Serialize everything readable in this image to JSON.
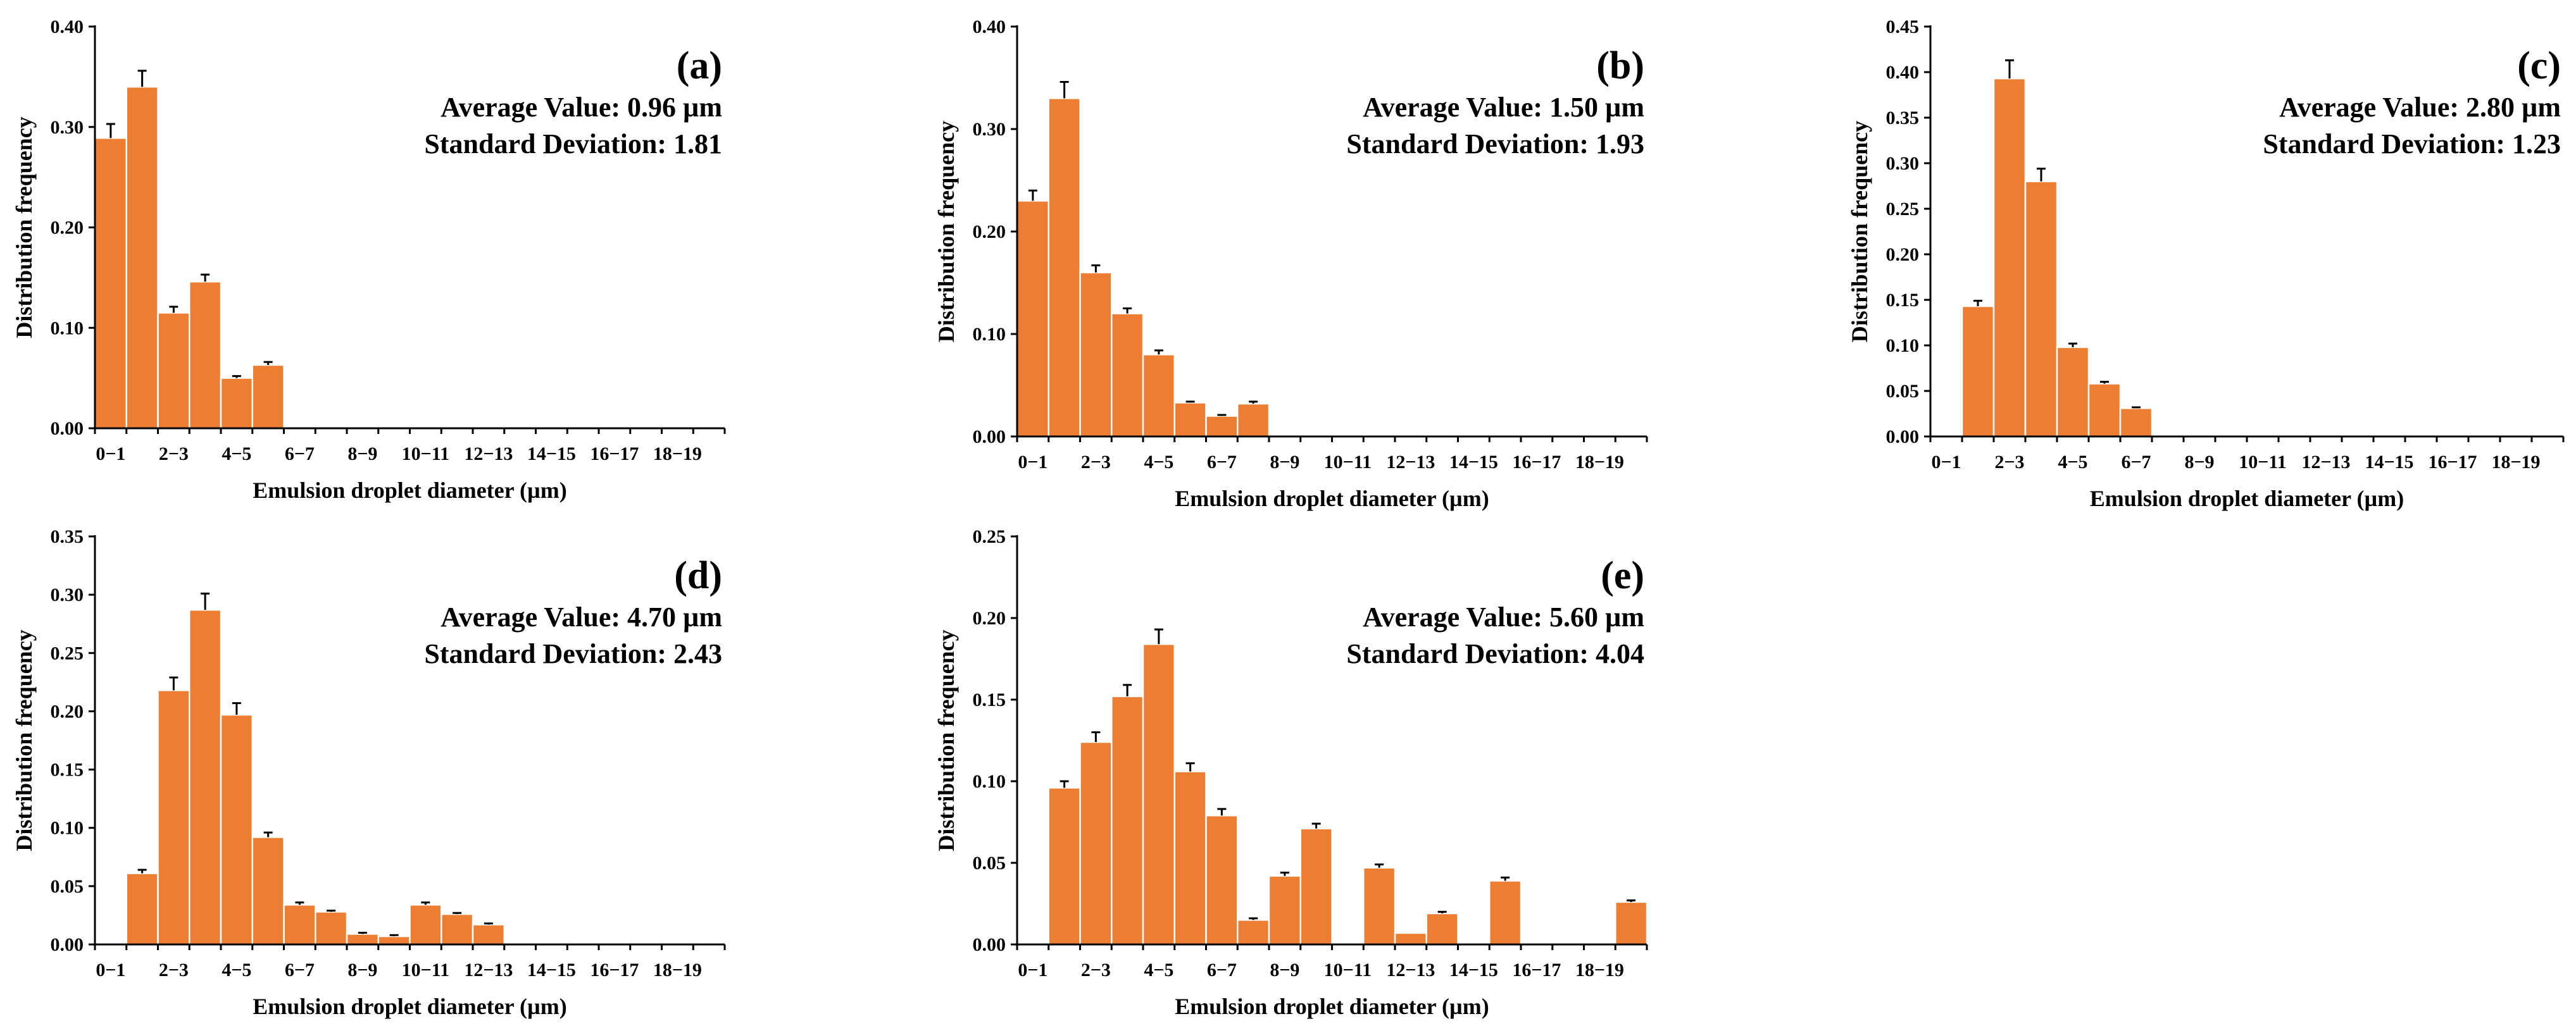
{
  "colors": {
    "bar": "#ED7D31",
    "axis": "#000000",
    "background": "#FFFFFF"
  },
  "chart_data": [
    {
      "type": "bar",
      "panel": "(a)",
      "stats": [
        "Average Value: 0.96 µm",
        "Standard Deviation: 1.81"
      ],
      "xlabel": "Emulsion droplet diameter (µm)",
      "ylabel": "Distribution frequency",
      "ylim": [
        0,
        0.4
      ],
      "yticks": [
        "0.00",
        "0.10",
        "0.20",
        "0.30",
        "0.40"
      ],
      "bins": 20,
      "xtick_labels": [
        "0−1",
        "2−3",
        "4−5",
        "6−7",
        "8−9",
        "10−11",
        "12−13",
        "14−15",
        "16−17",
        "18−19"
      ],
      "values": [
        0.289,
        0.34,
        0.115,
        0.146,
        0.05,
        0.063,
        0,
        0,
        0,
        0,
        0,
        0,
        0,
        0,
        0,
        0,
        0,
        0,
        0,
        0
      ],
      "errors": [
        0.014,
        0.016,
        0.006,
        0.007,
        0.002,
        0.003,
        0,
        0,
        0,
        0,
        0,
        0,
        0,
        0,
        0,
        0,
        0,
        0,
        0,
        0
      ]
    },
    {
      "type": "bar",
      "panel": "(b)",
      "stats": [
        "Average Value: 1.50 µm",
        "Standard Deviation: 1.93"
      ],
      "xlabel": "Emulsion droplet diameter (µm)",
      "ylabel": "Distribution frequency",
      "ylim": [
        0,
        0.4
      ],
      "yticks": [
        "0.00",
        "0.10",
        "0.20",
        "0.30",
        "0.40"
      ],
      "bins": 20,
      "xtick_labels": [
        "0−1",
        "2−3",
        "4−5",
        "6−7",
        "8−9",
        "10−11",
        "12−13",
        "14−15",
        "16−17",
        "18−19"
      ],
      "values": [
        0.23,
        0.33,
        0.16,
        0.12,
        0.08,
        0.033,
        0.02,
        0.032,
        0,
        0,
        0,
        0,
        0,
        0,
        0,
        0,
        0,
        0,
        0,
        0
      ],
      "errors": [
        0.01,
        0.016,
        0.007,
        0.005,
        0.004,
        0.001,
        0.001,
        0.002,
        0,
        0,
        0,
        0,
        0,
        0,
        0,
        0,
        0,
        0,
        0,
        0
      ]
    },
    {
      "type": "bar",
      "panel": "(c)",
      "stats": [
        "Average Value: 2.80 µm",
        "Standard Deviation: 1.23"
      ],
      "xlabel": "Emulsion droplet diameter (µm)",
      "ylabel": "Distribution frequency",
      "ylim": [
        0,
        0.45
      ],
      "yticks": [
        "0.00",
        "0.05",
        "0.10",
        "0.15",
        "0.20",
        "0.25",
        "0.30",
        "0.35",
        "0.40",
        "0.45"
      ],
      "bins": 20,
      "xtick_labels": [
        "0−1",
        "2−3",
        "4−5",
        "6−7",
        "8−9",
        "10−11",
        "12−13",
        "14−15",
        "16−17",
        "18−19"
      ],
      "values": [
        0,
        0.143,
        0.393,
        0.28,
        0.098,
        0.058,
        0.031,
        0,
        0,
        0,
        0,
        0,
        0,
        0,
        0,
        0,
        0,
        0,
        0,
        0
      ],
      "errors": [
        0,
        0.006,
        0.02,
        0.014,
        0.004,
        0.002,
        0.001,
        0,
        0,
        0,
        0,
        0,
        0,
        0,
        0,
        0,
        0,
        0,
        0,
        0
      ]
    },
    {
      "type": "bar",
      "panel": "(d)",
      "stats": [
        "Average Value: 4.70 µm",
        "Standard Deviation: 2.43"
      ],
      "xlabel": "Emulsion droplet diameter (µm)",
      "ylabel": "Distribution frequency",
      "ylim": [
        0,
        0.35
      ],
      "yticks": [
        "0.00",
        "0.05",
        "0.10",
        "0.15",
        "0.20",
        "0.25",
        "0.30",
        "0.35"
      ],
      "bins": 20,
      "xtick_labels": [
        "0−1",
        "2−3",
        "4−5",
        "6−7",
        "8−9",
        "10−11",
        "12−13",
        "14−15",
        "16−17",
        "18−19"
      ],
      "values": [
        0.001,
        0.061,
        0.218,
        0.287,
        0.197,
        0.092,
        0.034,
        0.028,
        0.009,
        0.007,
        0.034,
        0.026,
        0.017,
        0,
        0,
        0,
        0,
        0,
        0,
        0
      ],
      "errors": [
        0,
        0.003,
        0.011,
        0.014,
        0.01,
        0.004,
        0.002,
        0.001,
        0.001,
        0.001,
        0.002,
        0.001,
        0.001,
        0,
        0,
        0,
        0,
        0,
        0,
        0
      ]
    },
    {
      "type": "bar",
      "panel": "(e)",
      "stats": [
        "Average Value: 5.60 µm",
        "Standard Deviation: 4.04"
      ],
      "xlabel": "Emulsion droplet diameter (µm)",
      "ylabel": "Distribution frequency",
      "ylim": [
        0,
        0.25
      ],
      "yticks": [
        "0.00",
        "0.05",
        "0.10",
        "0.15",
        "0.20",
        "0.25"
      ],
      "bins": 20,
      "xtick_labels": [
        "0−1",
        "2−3",
        "4−5",
        "6−7",
        "8−9",
        "10−11",
        "12−13",
        "14−15",
        "16−17",
        "18−19"
      ],
      "values": [
        0,
        0.096,
        0.124,
        0.152,
        0.184,
        0.106,
        0.079,
        0.015,
        0.042,
        0.071,
        0,
        0.047,
        0.007,
        0.019,
        0,
        0.039,
        0,
        0,
        0,
        0.026
      ],
      "errors": [
        0,
        0.004,
        0.006,
        0.007,
        0.009,
        0.005,
        0.004,
        0.001,
        0.002,
        0.003,
        0,
        0.002,
        0,
        0.001,
        0,
        0.002,
        0,
        0,
        0,
        0.001
      ]
    }
  ]
}
